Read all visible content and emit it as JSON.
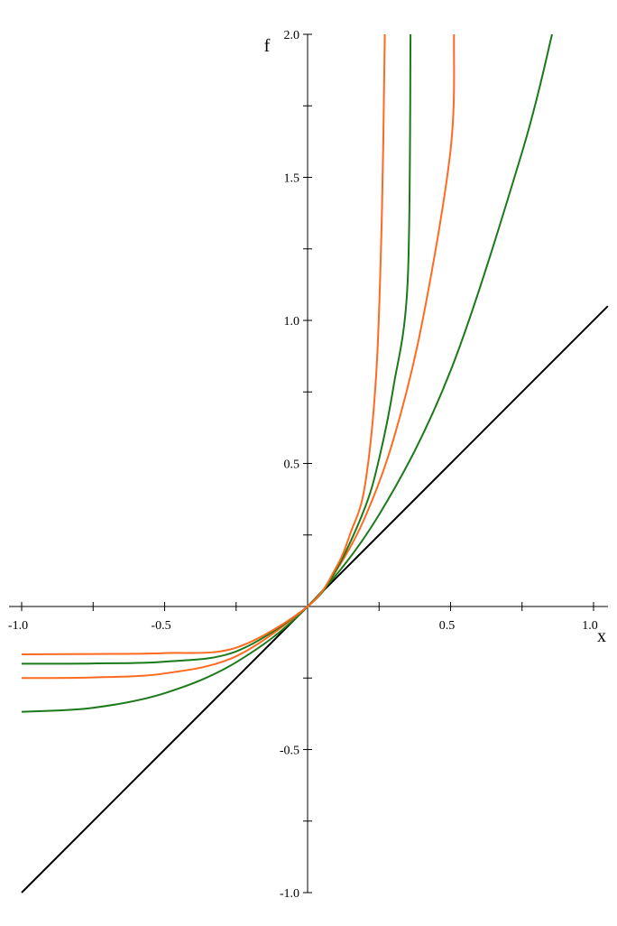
{
  "chart_data": {
    "type": "line",
    "xlabel": "x",
    "ylabel": "f",
    "xlim": [
      -1.0,
      1.05
    ],
    "ylim": [
      -1.0,
      2.0
    ],
    "x_ticks": [
      -1.0,
      -0.5,
      0.5,
      1.0
    ],
    "x_tick_labels": [
      "-1.0",
      "-0.5",
      "0.5",
      "1.0"
    ],
    "y_ticks": [
      -1.0,
      -0.5,
      0.5,
      1.0,
      1.5,
      2.0
    ],
    "y_tick_labels": [
      "-1.0",
      "-0.5",
      "0.5",
      "1.0",
      "1.5",
      "2.0"
    ],
    "grid": false,
    "series": [
      {
        "color": "#000000",
        "x": [
          -1.0,
          -0.5,
          0.0,
          0.5,
          1.05
        ],
        "y": [
          -1.0,
          -0.5,
          0.0,
          0.5,
          1.05
        ]
      },
      {
        "color": "#1a7a1a",
        "x": [
          -1.0,
          -0.75,
          -0.5,
          -0.25,
          0.0,
          0.25,
          0.5,
          0.75,
          0.855
        ],
        "y": [
          -0.368,
          -0.354,
          -0.303,
          -0.195,
          0.0,
          0.321,
          0.824,
          1.588,
          2.0
        ]
      },
      {
        "color": "#ff6a1f",
        "x": [
          -1.0,
          -0.75,
          -0.5,
          -0.25,
          0.0,
          0.1,
          0.2,
          0.3,
          0.4,
          0.5,
          0.512
        ],
        "y": [
          -0.25,
          -0.248,
          -0.234,
          -0.174,
          0.0,
          0.125,
          0.31,
          0.583,
          0.989,
          1.596,
          2.0
        ]
      },
      {
        "color": "#1a7a1a",
        "x": [
          -1.0,
          -0.75,
          -0.5,
          -0.25,
          0.0,
          0.1,
          0.2,
          0.25,
          0.3,
          0.35,
          0.36
        ],
        "y": [
          -0.2,
          -0.199,
          -0.193,
          -0.157,
          0.0,
          0.128,
          0.344,
          0.516,
          0.766,
          1.137,
          2.0
        ]
      },
      {
        "color": "#ff6a1f",
        "x": [
          -1.0,
          -0.75,
          -0.5,
          -0.25,
          0.0,
          0.1,
          0.15,
          0.2,
          0.24,
          0.26,
          0.27
        ],
        "y": [
          -0.167,
          -0.166,
          -0.163,
          -0.144,
          0.0,
          0.137,
          0.257,
          0.42,
          0.812,
          1.38,
          2.0
        ]
      }
    ]
  }
}
